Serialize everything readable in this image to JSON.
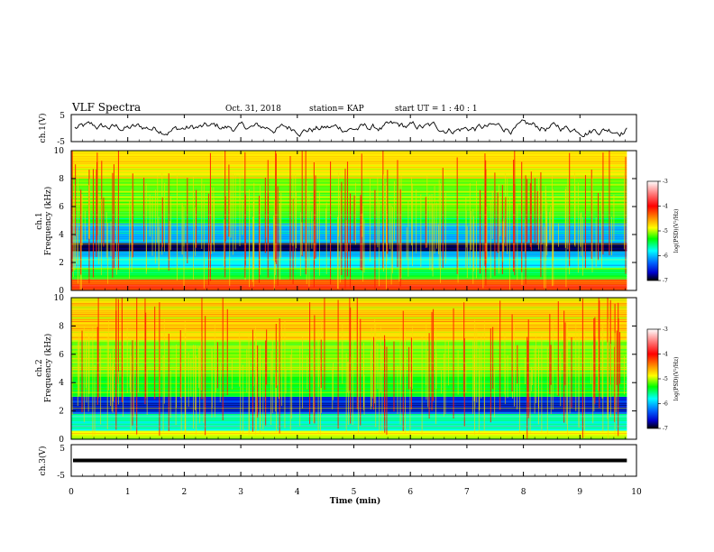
{
  "header": {
    "title": "VLF Spectra",
    "date": "Oct. 31, 2018",
    "station": "station= KAP",
    "start": "start  UT =   1 : 40 : 1"
  },
  "chart_data": [
    {
      "type": "line",
      "name": "ch1-waveform",
      "ylabel": "ch.1(V)",
      "ylim": [
        -5,
        5
      ],
      "yticks": [
        "5",
        "-5"
      ],
      "xlim": [
        0,
        10
      ],
      "color": "#000000"
    },
    {
      "type": "heatmap",
      "name": "ch1-spectrogram",
      "ylabel": "ch.1\nFrequency (kHz)",
      "xlim": [
        0,
        10
      ],
      "ylim": [
        0,
        10
      ],
      "data_end_min": 9.83,
      "yticks": [
        "0",
        "2",
        "4",
        "6",
        "8",
        "10"
      ],
      "colorbar": {
        "label": "log(PSD)(V²/Hz)",
        "ticks": [
          "-3",
          "-4",
          "-5",
          "-6",
          "-7"
        ],
        "range": [
          -7,
          -3
        ]
      },
      "bands_khz": [
        {
          "from": 0.0,
          "to": 0.8,
          "level": -3.8
        },
        {
          "from": 0.8,
          "to": 1.6,
          "level": -5.3
        },
        {
          "from": 1.6,
          "to": 2.4,
          "level": -5.8
        },
        {
          "from": 2.4,
          "to": 2.8,
          "level": -6.1
        },
        {
          "from": 2.8,
          "to": 3.4,
          "level": -6.8
        },
        {
          "from": 3.4,
          "to": 4.8,
          "level": -6.0
        },
        {
          "from": 4.8,
          "to": 5.6,
          "level": -5.3
        },
        {
          "from": 5.6,
          "to": 8.0,
          "level": -4.9
        },
        {
          "from": 8.0,
          "to": 10.0,
          "level": -4.5
        }
      ]
    },
    {
      "type": "heatmap",
      "name": "ch2-spectrogram",
      "ylabel": "ch.2\nFrequency (kHz)",
      "xlim": [
        0,
        10
      ],
      "ylim": [
        0,
        10
      ],
      "data_end_min": 9.83,
      "yticks": [
        "0",
        "2",
        "4",
        "6",
        "8",
        "10"
      ],
      "colorbar": {
        "label": "log(PSD)(V²/Hz)",
        "ticks": [
          "-3",
          "-4",
          "-5",
          "-6",
          "-7"
        ],
        "range": [
          -7,
          -3
        ]
      },
      "bands_khz": [
        {
          "from": 0.0,
          "to": 0.6,
          "level": -4.6
        },
        {
          "from": 0.6,
          "to": 1.8,
          "level": -5.7
        },
        {
          "from": 1.8,
          "to": 3.0,
          "level": -6.4
        },
        {
          "from": 3.0,
          "to": 4.5,
          "level": -5.2
        },
        {
          "from": 4.5,
          "to": 7.0,
          "level": -4.9
        },
        {
          "from": 7.0,
          "to": 10.0,
          "level": -4.4
        }
      ]
    },
    {
      "type": "line",
      "name": "ch3-waveform",
      "ylabel": "ch.3(V)",
      "ylim": [
        -5,
        5
      ],
      "yticks": [
        "5",
        "-5"
      ],
      "xlim": [
        0,
        10
      ],
      "constant_value": 0,
      "color": "#000000"
    }
  ],
  "xaxis": {
    "label": "Time  (min)",
    "ticks": [
      "0",
      "1",
      "2",
      "3",
      "4",
      "5",
      "6",
      "7",
      "8",
      "9",
      "10"
    ]
  }
}
